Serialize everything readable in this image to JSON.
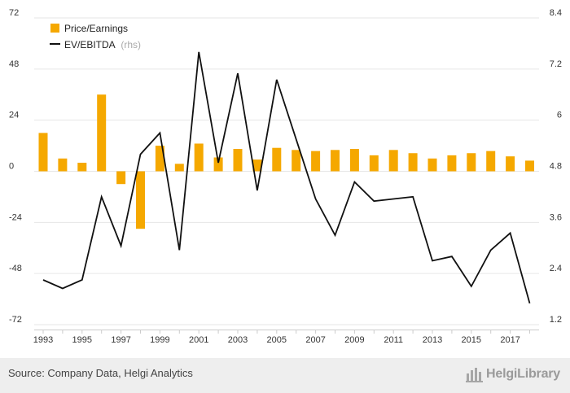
{
  "chart_data": {
    "type": "bar+line",
    "x": [
      1993,
      1994,
      1995,
      1996,
      1997,
      1998,
      1999,
      2000,
      2001,
      2002,
      2003,
      2004,
      2005,
      2006,
      2007,
      2008,
      2009,
      2010,
      2011,
      2012,
      2013,
      2014,
      2015,
      2016,
      2017,
      2018
    ],
    "xticks": [
      1993,
      1995,
      1997,
      1999,
      2001,
      2003,
      2005,
      2007,
      2009,
      2011,
      2013,
      2015,
      2017
    ],
    "series": [
      {
        "name": "Price/Earnings",
        "type": "bar",
        "axis": "left",
        "color": "#f5a800",
        "values": [
          18,
          6,
          4,
          36,
          -6,
          -27,
          12,
          3.5,
          13,
          6.5,
          10.5,
          5.5,
          11,
          10,
          9.5,
          10,
          10.5,
          7.5,
          10,
          8.5,
          6,
          7.5,
          8.5,
          9.5,
          7,
          5
        ]
      },
      {
        "name": "EV/EBITDA",
        "name_suffix": "(rhs)",
        "type": "line",
        "axis": "right",
        "color": "#111111",
        "values": [
          2.25,
          2.05,
          2.25,
          4.2,
          3.05,
          5.2,
          5.7,
          2.95,
          7.6,
          5.0,
          7.1,
          4.35,
          6.95,
          5.55,
          4.15,
          3.3,
          4.55,
          4.1,
          4.15,
          4.2,
          2.7,
          2.8,
          2.1,
          2.95,
          3.35,
          1.7
        ]
      }
    ],
    "yleft": {
      "min": -72,
      "max": 72,
      "ticks": [
        -72,
        -48,
        -24,
        0,
        24,
        48,
        72
      ]
    },
    "yright": {
      "min": 1.2,
      "max": 8.4,
      "ticks": [
        "1.2",
        "2.4",
        "3.6",
        "4.8",
        "6",
        "7.2",
        "8.4"
      ]
    },
    "grid": true,
    "legend": "top-left"
  },
  "footer": {
    "source": "Source: Company Data, Helgi Analytics",
    "brand": "HelgiLibrary"
  },
  "colors": {
    "bar": "#f5a800",
    "line": "#111111",
    "grid": "#e6e6e6",
    "footer_bg": "#eeeeee"
  }
}
